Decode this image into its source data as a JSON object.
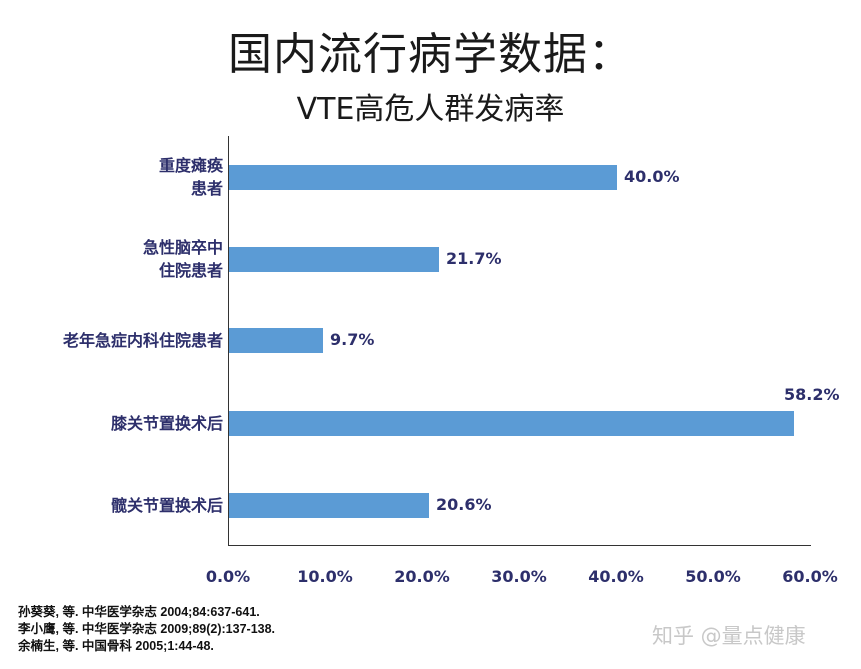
{
  "title": "国内流行病学数据：",
  "subtitle": "VTE高危人群发病率",
  "chart_data": {
    "type": "bar",
    "orientation": "horizontal",
    "title": "国内流行病学数据：VTE高危人群发病率",
    "categories": [
      "重度瘫痪\n患者",
      "急性脑卒中\n住院患者",
      "老年急症内科住院患者",
      "膝关节置换术后",
      "髋关节置换术后"
    ],
    "values": [
      40.0,
      21.7,
      9.7,
      58.2,
      20.6
    ],
    "value_labels": [
      "40.0%",
      "21.7%",
      "9.7%",
      "58.2%",
      "20.6%"
    ],
    "xlabel": "",
    "ylabel": "",
    "xlim": [
      0,
      60
    ],
    "x_ticks": [
      "0.0%",
      "10.0%",
      "20.0%",
      "30.0%",
      "40.0%",
      "50.0%",
      "60.0%"
    ],
    "grid": false,
    "bar_color": "#5b9bd5",
    "label_color": "#2d2f6b"
  },
  "references": [
    "孙葵葵, 等. 中华医学杂志 2004;84:637-641.",
    "李小鹰, 等. 中华医学杂志 2009;89(2):137-138.",
    "余楠生, 等. 中国骨科 2005;1:44-48."
  ],
  "watermark": "知乎 @量点健康"
}
